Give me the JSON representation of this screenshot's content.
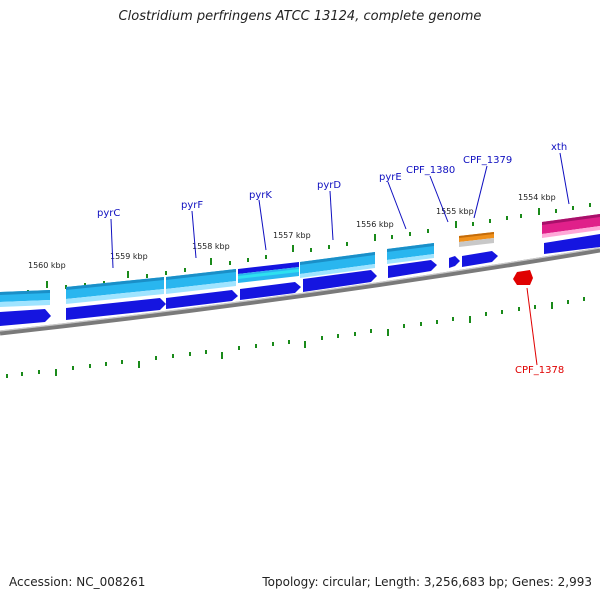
{
  "title": "Clostridium perfringens ATCC 13124, complete genome",
  "footer": {
    "accession": "Accession: NC_008261",
    "topology": "Topology: circular; Length: 3,256,683 bp; Genes: 2,993"
  },
  "colors": {
    "gene_label": "#1010c0",
    "highlight_label": "#e00000",
    "backbone": "#808080",
    "tick": "#1a8a1a",
    "strand_plus": "#1515e0",
    "cds_light": "#29b6ef",
    "hit_orange": "#f0901a",
    "hit_magenta": "#e0208a",
    "hit_red": "#e00000"
  },
  "genes": [
    {
      "name": "pyrC"
    },
    {
      "name": "pyrF"
    },
    {
      "name": "pyrK"
    },
    {
      "name": "pyrD"
    },
    {
      "name": "pyrE"
    },
    {
      "name": "CPF_1380"
    },
    {
      "name": "CPF_1379"
    },
    {
      "name": "xth"
    },
    {
      "name": "CPF_1378"
    }
  ],
  "ruler": [
    "1560 kbp",
    "1559 kbp",
    "1558 kbp",
    "1557 kbp",
    "1556 kbp",
    "1555 kbp",
    "1554 kbp"
  ]
}
